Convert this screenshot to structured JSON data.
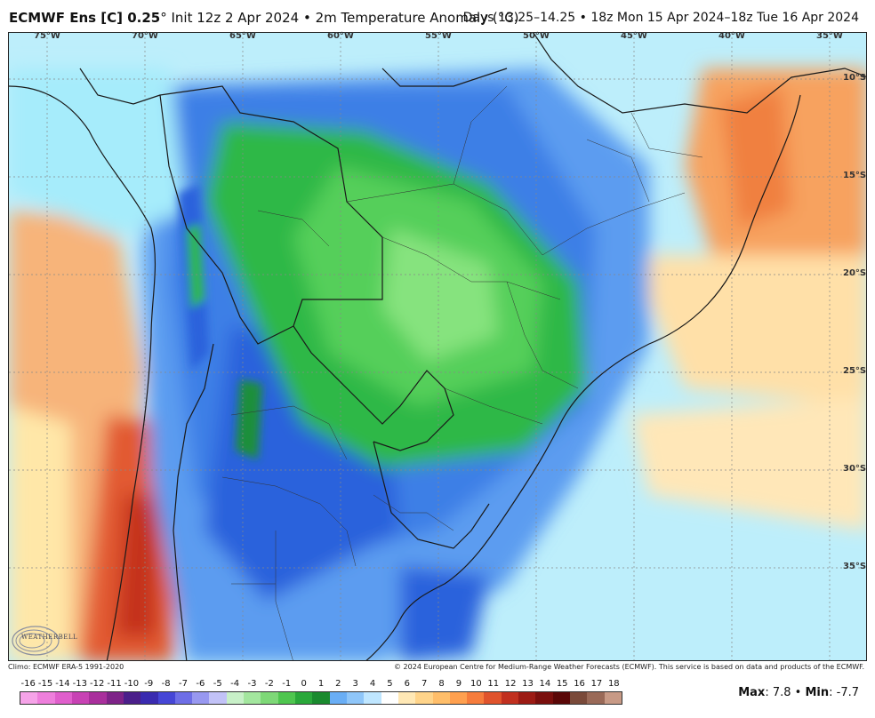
{
  "header": {
    "product": "ECMWF Ens [C] 0.25",
    "degree": "°",
    "init": " Init 12z 2 Apr 2024 • 2m Temperature Anomaly (°C)",
    "valid": "Days 13.25–14.25 • 18z Mon 15 Apr 2024–18z Tue 16 Apr 2024"
  },
  "map": {
    "lon_labels": [
      "75°W",
      "70°W",
      "65°W",
      "60°W",
      "55°W",
      "50°W",
      "45°W",
      "40°W",
      "35°W"
    ],
    "lat_labels": [
      "10°S",
      "15°S",
      "20°S",
      "25°S",
      "30°S",
      "35°S"
    ],
    "colors": {
      "warm_orange": "#f7a25e",
      "warm_red": "#d9442b",
      "cool_lightblue": "#a6ecfb",
      "cool_blue": "#3d7fe6",
      "deep_blue": "#1f4fd4",
      "green": "#2fb846",
      "light_green": "#7fe37a"
    }
  },
  "credits": {
    "climo": "Climo: ECMWF ERA-5 1991-2020",
    "copyright": "© 2024 European Centre for Medium-Range Weather Forecasts (ECMWF). This service is based on data and products of the ECMWF.",
    "logo_text": "WEATHERBELL"
  },
  "legend": {
    "ticks": [
      "-16",
      "-15",
      "-14",
      "-13",
      "-12",
      "-11",
      "-10",
      "-9",
      "-8",
      "-7",
      "-6",
      "-5",
      "-4",
      "-3",
      "-2",
      "-1",
      "0",
      "1",
      "2",
      "3",
      "4",
      "5",
      "6",
      "7",
      "8",
      "9",
      "10",
      "11",
      "12",
      "13",
      "14",
      "15",
      "16",
      "17",
      "18"
    ],
    "colors": [
      "#f6a3e8",
      "#ee7fdc",
      "#e05fcc",
      "#c842b4",
      "#a92f9c",
      "#7e2388",
      "#4b1f8a",
      "#3a2bb0",
      "#4646d6",
      "#6e6ee6",
      "#9898f0",
      "#c2c2f7",
      "#c8f0c8",
      "#a3e69e",
      "#7ed877",
      "#4fc64f",
      "#2aa83a",
      "#1a8a2e",
      "#6aaef5",
      "#8fc6f9",
      "#bfe6ff",
      "#ffffff",
      "#ffe8b5",
      "#ffd48a",
      "#ffbe6a",
      "#ffa04f",
      "#f67c3c",
      "#e0532c",
      "#c1301f",
      "#9c1b14",
      "#7a0f0d",
      "#5a0707",
      "#7a4a3a",
      "#9a6a58",
      "#c89a86"
    ],
    "max_label": "Max",
    "max_value": ": 7.8 • ",
    "min_label": "Min",
    "min_value": ": -7.7"
  }
}
